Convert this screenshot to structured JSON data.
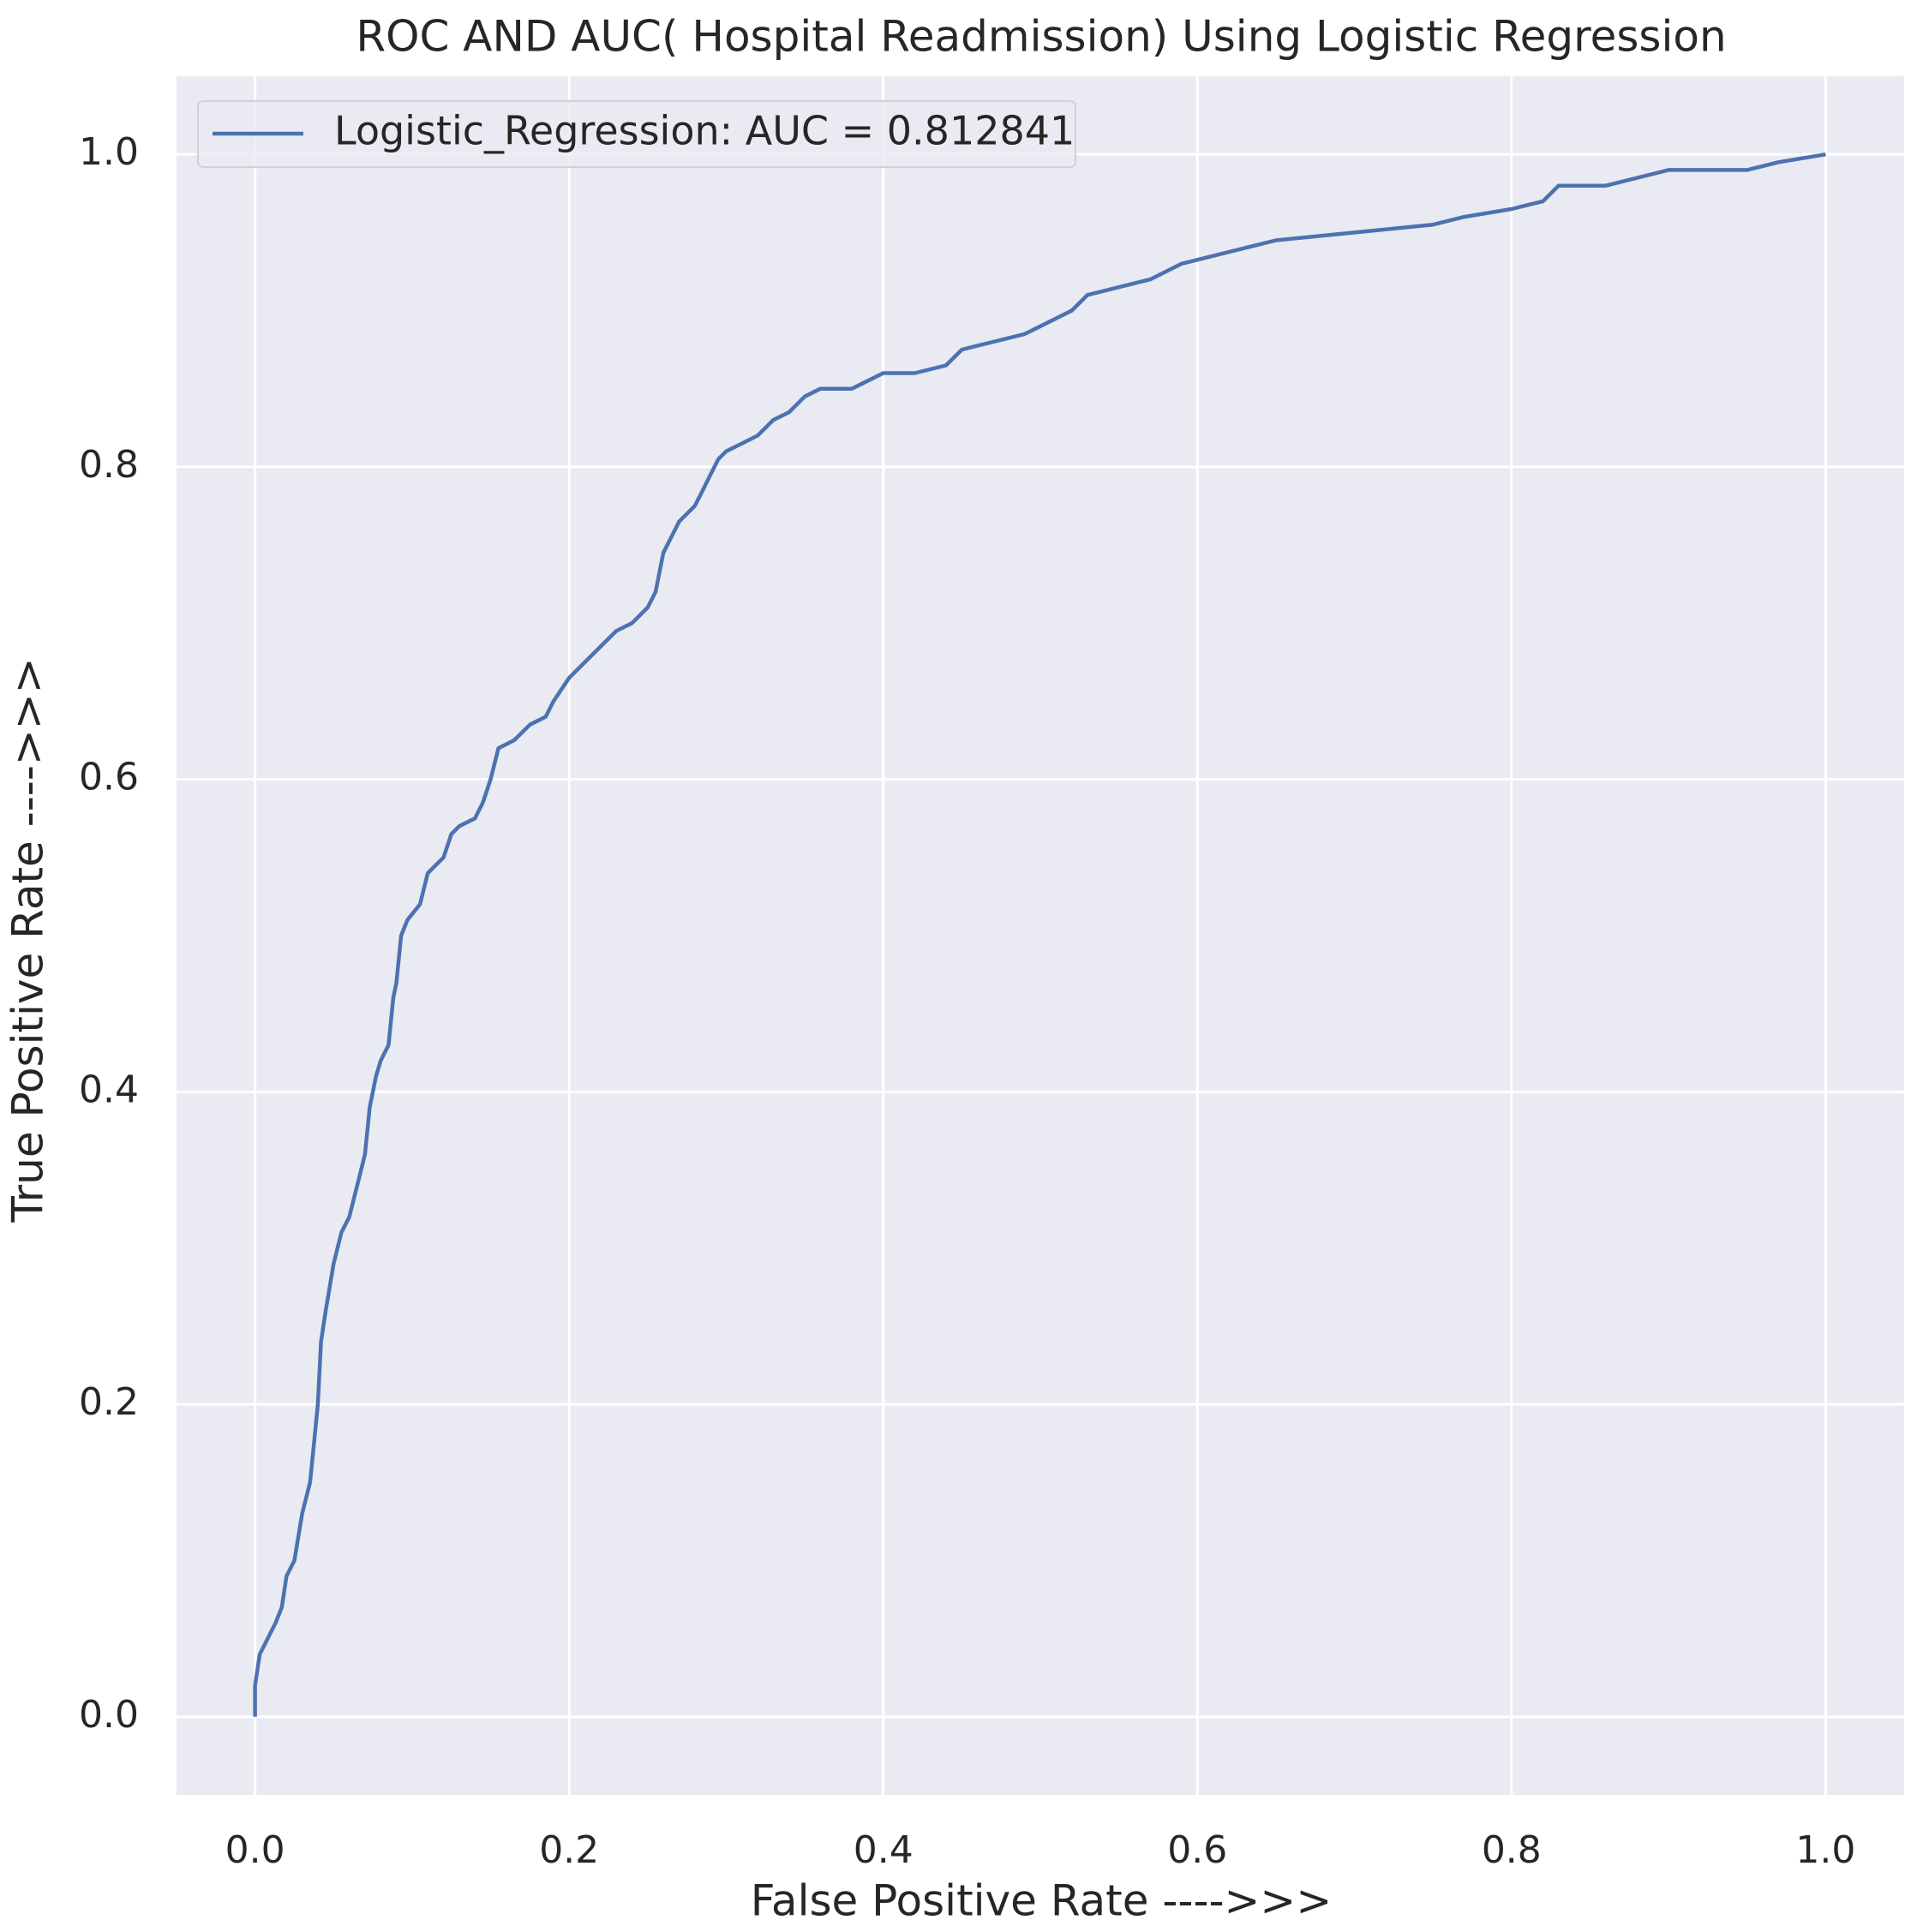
{
  "chart_data": {
    "type": "line",
    "title": "ROC AND AUC( Hospital Readmission) Using Logistic Regression",
    "xlabel": "False Positive Rate ---->>>",
    "ylabel": "True Positive Rate ---->>>",
    "xlim": [
      -0.05,
      1.05
    ],
    "ylim": [
      -0.05,
      1.05
    ],
    "xticks": [
      {
        "value": 0,
        "label": "0.0"
      },
      0.2,
      0.4,
      0.6,
      0.8,
      {
        "value": 1,
        "label": "1.0"
      }
    ],
    "yticks": [
      {
        "value": 0,
        "label": "0.0"
      },
      0.2,
      0.4,
      0.6,
      0.8,
      {
        "value": 1,
        "label": "1.0"
      }
    ],
    "grid": true,
    "legend": "upper left",
    "x": [
      0,
      0,
      0.003,
      0.008,
      0.013,
      0.017,
      0.02,
      0.025,
      0.03,
      0.035,
      0.038,
      0.04,
      0.042,
      0.045,
      0.05,
      0.055,
      0.06,
      0.065,
      0.07,
      0.073,
      0.077,
      0.08,
      0.085,
      0.088,
      0.09,
      0.093,
      0.097,
      0.105,
      0.11,
      0.12,
      0.125,
      0.13,
      0.14,
      0.145,
      0.15,
      0.155,
      0.165,
      0.175,
      0.185,
      0.19,
      0.2,
      0.21,
      0.22,
      0.23,
      0.24,
      0.25,
      0.255,
      0.26,
      0.265,
      0.27,
      0.28,
      0.285,
      0.29,
      0.295,
      0.3,
      0.31,
      0.32,
      0.33,
      0.34,
      0.35,
      0.36,
      0.38,
      0.4,
      0.42,
      0.44,
      0.45,
      0.47,
      0.49,
      0.5,
      0.51,
      0.52,
      0.53,
      0.55,
      0.57,
      0.59,
      0.61,
      0.63,
      0.65,
      0.7,
      0.75,
      0.77,
      0.8,
      0.82,
      0.83,
      0.86,
      0.9,
      0.95,
      0.97,
      1
    ],
    "series": [
      {
        "name": "Logistic_Regression: AUC = 0.812841",
        "color": "#4c72b0",
        "values": [
          0,
          0.02,
          0.04,
          0.05,
          0.06,
          0.07,
          0.09,
          0.1,
          0.13,
          0.15,
          0.18,
          0.2,
          0.24,
          0.26,
          0.29,
          0.31,
          0.32,
          0.34,
          0.36,
          0.39,
          0.41,
          0.42,
          0.43,
          0.46,
          0.47,
          0.5,
          0.51,
          0.52,
          0.54,
          0.55,
          0.565,
          0.57,
          0.575,
          0.585,
          0.6,
          0.62,
          0.625,
          0.635,
          0.64,
          0.65,
          0.665,
          0.675,
          0.685,
          0.695,
          0.7,
          0.71,
          0.72,
          0.745,
          0.755,
          0.765,
          0.775,
          0.785,
          0.795,
          0.805,
          0.81,
          0.815,
          0.82,
          0.83,
          0.835,
          0.845,
          0.85,
          0.85,
          0.86,
          0.86,
          0.865,
          0.875,
          0.88,
          0.885,
          0.89,
          0.895,
          0.9,
          0.91,
          0.915,
          0.92,
          0.93,
          0.935,
          0.94,
          0.945,
          0.95,
          0.955,
          0.96,
          0.965,
          0.97,
          0.98,
          0.98,
          0.99,
          0.99,
          0.995,
          1
        ]
      }
    ]
  }
}
